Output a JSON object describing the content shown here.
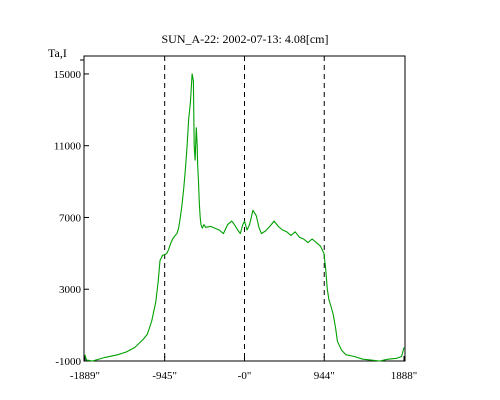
{
  "chart_data": {
    "type": "line",
    "title": "SUN_A-22: 2002-07-13: 4.08[cm]",
    "ylabel": "Ta,I",
    "xlabel": "",
    "xlim": [
      -1900,
      1900
    ],
    "ylim": [
      -1000,
      16000
    ],
    "grid": false,
    "x_ticks": [
      {
        "value": -1889,
        "label": "-1889\""
      },
      {
        "value": -945,
        "label": "-945\""
      },
      {
        "value": 0,
        "label": "-0\""
      },
      {
        "value": 944,
        "label": "944\""
      },
      {
        "value": 1888,
        "label": "1888\""
      }
    ],
    "y_ticks": [
      {
        "value": -1000,
        "label": "-1000"
      },
      {
        "value": 3000,
        "label": "3000"
      },
      {
        "value": 7000,
        "label": "7000"
      },
      {
        "value": 11000,
        "label": "11000"
      },
      {
        "value": 15000,
        "label": "15000"
      }
    ],
    "vlines": [
      -945,
      0,
      944
    ],
    "line_color": "#00a000",
    "series": [
      {
        "x": [
          -1889,
          -1870,
          -1800,
          -1650,
          -1500,
          -1400,
          -1300,
          -1200,
          -1150,
          -1100,
          -1050,
          -1020,
          -1000,
          -970,
          -950,
          -920,
          -900,
          -870,
          -850,
          -820,
          -800,
          -780,
          -760,
          -740,
          -720,
          -700,
          -680,
          -660,
          -640,
          -620,
          -605,
          -595,
          -585,
          -570,
          -560,
          -555,
          -545,
          -535,
          -525,
          -515,
          -500,
          -480,
          -460,
          -400,
          -350,
          -300,
          -250,
          -200,
          -150,
          -120,
          -80,
          -50,
          -20,
          0,
          30,
          60,
          100,
          140,
          170,
          200,
          250,
          300,
          350,
          400,
          450,
          500,
          550,
          600,
          650,
          700,
          750,
          800,
          850,
          900,
          940,
          960,
          980,
          1000,
          1020,
          1050,
          1080,
          1100,
          1150,
          1200,
          1300,
          1400,
          1500,
          1600,
          1700,
          1800,
          1860,
          1888
        ],
        "y": [
          -650,
          -950,
          -1000,
          -800,
          -650,
          -500,
          -250,
          200,
          500,
          1200,
          2300,
          3500,
          4600,
          4900,
          4900,
          5000,
          5200,
          5600,
          5800,
          6000,
          6100,
          6400,
          7000,
          7700,
          8600,
          9700,
          11000,
          12500,
          13400,
          15000,
          14600,
          11000,
          10200,
          12000,
          11000,
          10000,
          9000,
          7800,
          7000,
          6600,
          6400,
          6600,
          6450,
          6500,
          6400,
          6300,
          6100,
          6600,
          6800,
          6600,
          6300,
          6100,
          6600,
          6800,
          6300,
          6600,
          7400,
          7100,
          6450,
          6100,
          6250,
          6500,
          6800,
          6500,
          6300,
          6200,
          6000,
          6200,
          5900,
          5800,
          5600,
          5800,
          5600,
          5400,
          5000,
          4200,
          3000,
          2400,
          2100,
          1600,
          800,
          100,
          -400,
          -650,
          -750,
          -900,
          -950,
          -1000,
          -900,
          -850,
          -750,
          -250
        ]
      }
    ]
  }
}
